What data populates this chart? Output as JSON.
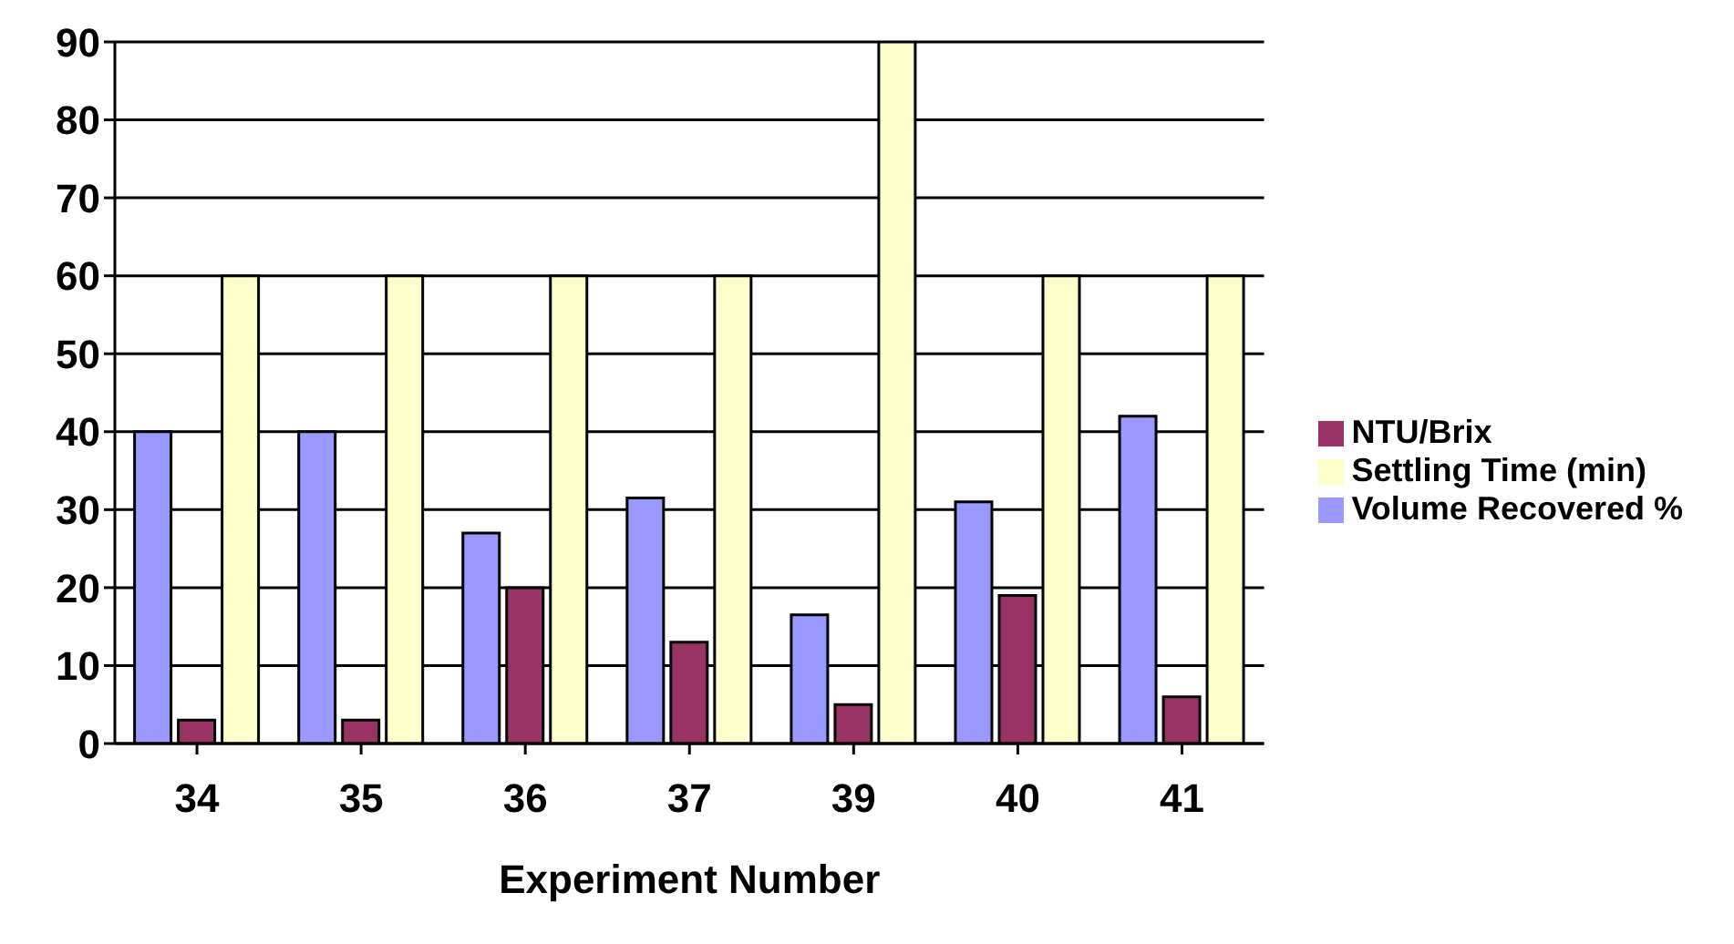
{
  "chart_data": {
    "type": "bar",
    "xlabel": "Experiment Number",
    "categories": [
      "34",
      "35",
      "36",
      "37",
      "39",
      "40",
      "41"
    ],
    "series": [
      {
        "name": "Volume Recovered %",
        "color": "#9999ff",
        "values": [
          40,
          40,
          27,
          31.5,
          16.5,
          31,
          42
        ]
      },
      {
        "name": "NTU/Brix",
        "color": "#993366",
        "values": [
          3,
          3,
          20,
          13,
          5,
          19,
          6
        ]
      },
      {
        "name": "Settling Time (min)",
        "color": "#ffffcc",
        "values": [
          60,
          60,
          60,
          60,
          90,
          60,
          60
        ]
      }
    ],
    "ylim": [
      0,
      90
    ],
    "yticks": [
      0,
      10,
      20,
      30,
      40,
      50,
      60,
      70,
      80,
      90
    ],
    "grid": "y",
    "legend": "right"
  }
}
